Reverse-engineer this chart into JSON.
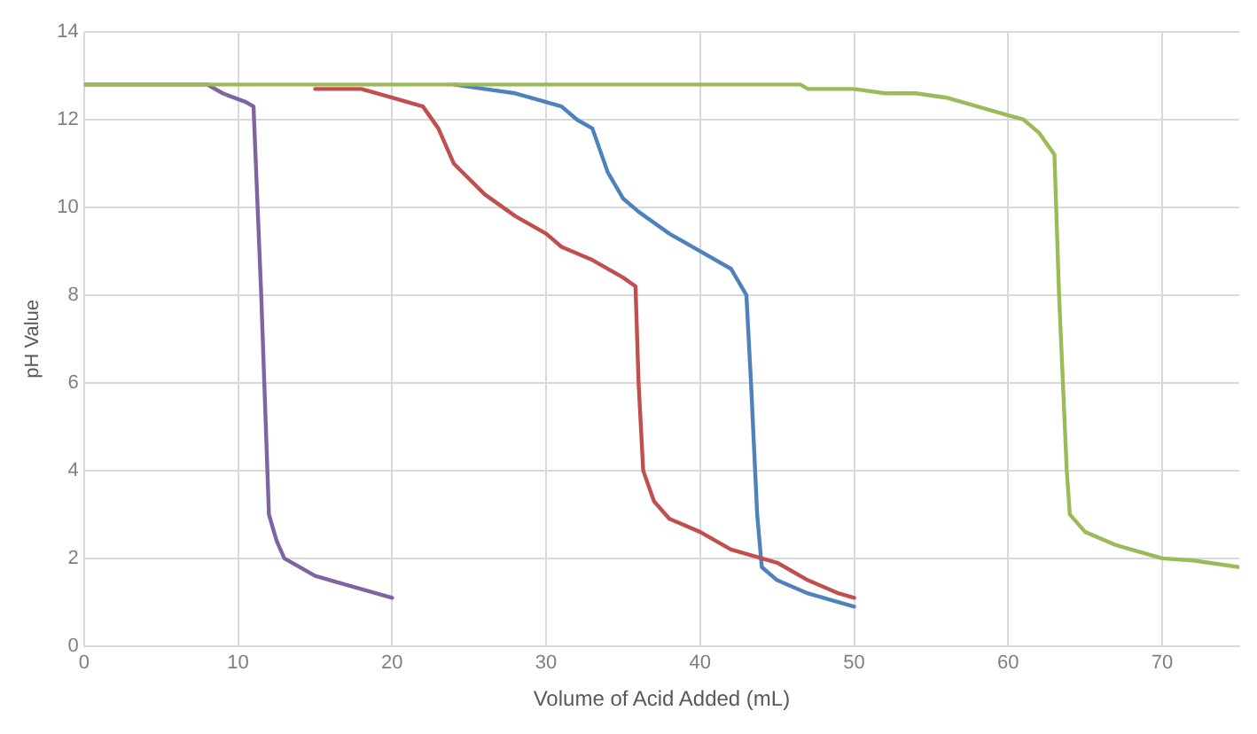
{
  "chart_data": {
    "type": "line",
    "xlabel": "Volume of Acid Added (mL)",
    "ylabel": "pH Value",
    "xlim": [
      0,
      75
    ],
    "xticks": [
      0,
      10,
      20,
      30,
      40,
      50,
      60,
      70
    ],
    "ylim": [
      0,
      14
    ],
    "yticks": [
      0,
      2,
      4,
      6,
      8,
      10,
      12,
      14
    ],
    "grid": true,
    "legend": false,
    "marker": "none",
    "line_style": "solid",
    "series": [
      {
        "color": "#9bbb59",
        "x": [
          0,
          46.5,
          47,
          50,
          52,
          54,
          56,
          58,
          60,
          61,
          62,
          63,
          63.3,
          63.8,
          64,
          65,
          67,
          69,
          70,
          72,
          73,
          75
        ],
        "values": [
          12.8,
          12.8,
          12.7,
          12.7,
          12.6,
          12.6,
          12.5,
          12.3,
          12.1,
          12.0,
          11.7,
          11.2,
          8,
          4,
          3.0,
          2.6,
          2.3,
          2.1,
          2.0,
          1.95,
          1.9,
          1.8
        ]
      },
      {
        "color": "#c0504d",
        "x": [
          15,
          18,
          20,
          22,
          23,
          24,
          26,
          28,
          30,
          31,
          33,
          35,
          35.8,
          36,
          36.3,
          37,
          38,
          40,
          42,
          44,
          45,
          47,
          49,
          50
        ],
        "values": [
          12.7,
          12.7,
          12.5,
          12.3,
          11.8,
          11,
          10.3,
          9.8,
          9.4,
          9.1,
          8.8,
          8.4,
          8.2,
          6,
          4,
          3.3,
          2.9,
          2.6,
          2.2,
          2.0,
          1.9,
          1.5,
          1.2,
          1.1
        ]
      },
      {
        "color": "#4f81bd",
        "x": [
          24,
          26,
          28,
          30,
          31,
          32,
          33,
          34,
          35,
          36,
          38,
          40,
          42,
          43,
          43.3,
          43.7,
          44,
          45,
          47,
          50
        ],
        "values": [
          12.8,
          12.7,
          12.6,
          12.4,
          12.3,
          12.0,
          11.8,
          10.8,
          10.2,
          9.9,
          9.4,
          9.0,
          8.6,
          8.0,
          6,
          3,
          1.8,
          1.5,
          1.2,
          0.9
        ]
      },
      {
        "color": "#8064a2",
        "x": [
          0,
          8,
          9,
          10.5,
          11,
          11.5,
          12,
          12.5,
          13,
          15,
          17,
          20
        ],
        "values": [
          12.8,
          12.8,
          12.6,
          12.4,
          12.3,
          8,
          3,
          2.4,
          2.0,
          1.6,
          1.4,
          1.1
        ]
      }
    ]
  }
}
